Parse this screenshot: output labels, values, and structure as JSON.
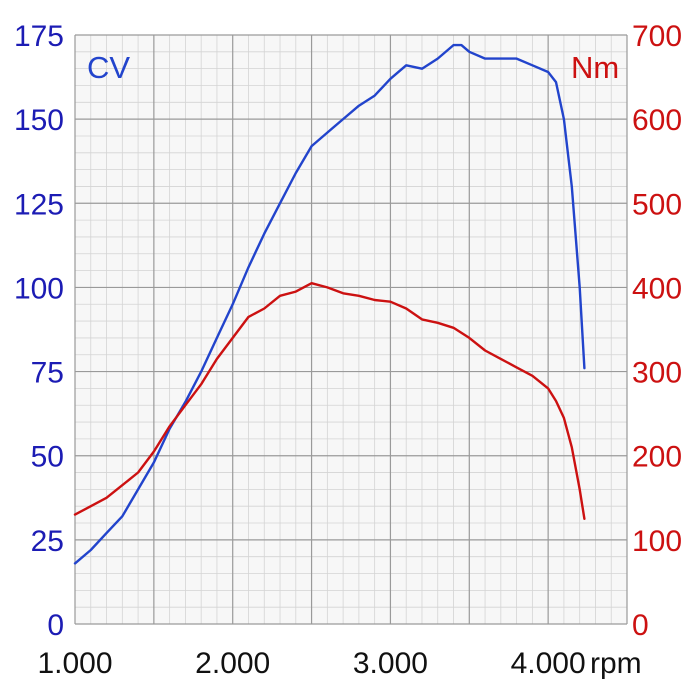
{
  "chart_data": {
    "type": "line",
    "x_unit": "rpm",
    "x_ticks": [
      "1.000",
      "2.000",
      "3.000",
      "4.000"
    ],
    "x_tick_values": [
      1000,
      2000,
      3000,
      4000
    ],
    "xlim": [
      1000,
      4500
    ],
    "y_left": {
      "label": "CV",
      "ticks": [
        "0",
        "25",
        "50",
        "75",
        "100",
        "125",
        "150",
        "175"
      ],
      "ylim": [
        0,
        175
      ],
      "color": "#1c1cb4"
    },
    "y_right": {
      "label": "Nm",
      "ticks": [
        "0",
        "100",
        "200",
        "300",
        "400",
        "500",
        "600",
        "700"
      ],
      "ylim": [
        0,
        700
      ],
      "color": "#cc1111"
    },
    "grid": true,
    "series": [
      {
        "axis": "left",
        "color": "#2244cc",
        "x": [
          1000,
          1100,
          1200,
          1300,
          1400,
          1500,
          1600,
          1700,
          1800,
          1900,
          2000,
          2100,
          2200,
          2300,
          2400,
          2500,
          2600,
          2700,
          2800,
          2900,
          3000,
          3100,
          3200,
          3300,
          3400,
          3450,
          3500,
          3600,
          3700,
          3800,
          3900,
          4000,
          4050,
          4100,
          4150,
          4200,
          4230
        ],
        "values": [
          18,
          22,
          27,
          32,
          40,
          48,
          58,
          66,
          75,
          85,
          95,
          106,
          116,
          125,
          134,
          142,
          146,
          150,
          154,
          157,
          162,
          166,
          165,
          168,
          172,
          172,
          170,
          168,
          168,
          168,
          166,
          164,
          161,
          150,
          130,
          100,
          76
        ]
      },
      {
        "axis": "right",
        "color": "#cc1111",
        "x": [
          1000,
          1100,
          1200,
          1300,
          1400,
          1500,
          1600,
          1700,
          1800,
          1900,
          2000,
          2100,
          2200,
          2300,
          2400,
          2500,
          2600,
          2700,
          2800,
          2900,
          3000,
          3100,
          3200,
          3300,
          3400,
          3500,
          3600,
          3700,
          3800,
          3900,
          4000,
          4050,
          4100,
          4150,
          4200,
          4230
        ],
        "values": [
          130,
          140,
          150,
          165,
          180,
          205,
          235,
          260,
          285,
          315,
          340,
          365,
          375,
          390,
          395,
          405,
          400,
          393,
          390,
          385,
          383,
          375,
          362,
          358,
          352,
          340,
          325,
          315,
          305,
          295,
          280,
          265,
          245,
          210,
          160,
          125
        ]
      }
    ]
  }
}
